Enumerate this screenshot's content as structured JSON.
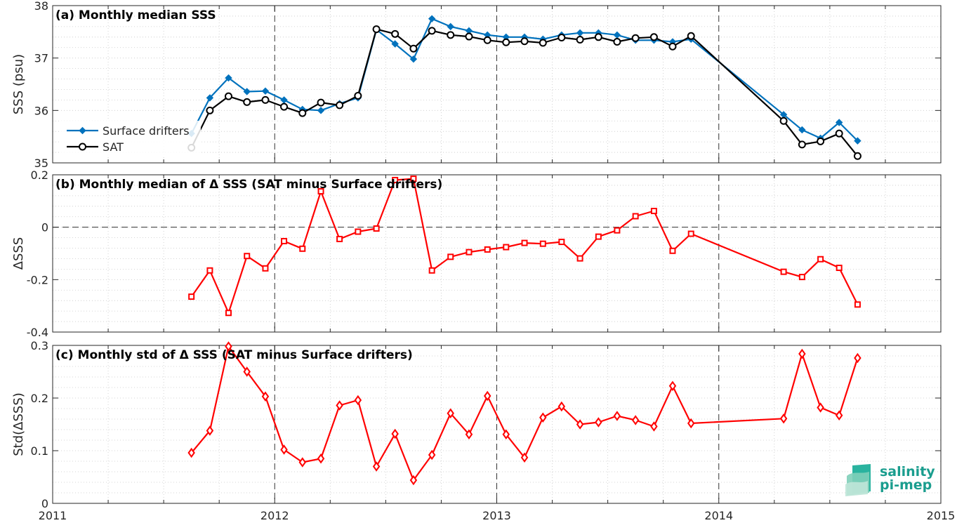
{
  "chart_data": [
    {
      "id": "a",
      "type": "line",
      "title": "(a) Monthly median SSS",
      "ylabel": "SSS (psu)",
      "xlim": [
        2011,
        2015
      ],
      "ylim": [
        35,
        38
      ],
      "yticks": [
        35,
        36,
        37,
        38
      ],
      "grid": true,
      "legend": {
        "placement": "left",
        "entries": [
          "Surface drifters",
          "SAT"
        ]
      },
      "series": [
        {
          "name": "Surface drifters",
          "color": "#0072bd",
          "marker": "diamond",
          "x": [
            2011.625,
            2011.708,
            2011.792,
            2011.875,
            2011.958,
            2012.042,
            2012.125,
            2012.208,
            2012.292,
            2012.375,
            2012.458,
            2012.542,
            2012.625,
            2012.708,
            2012.792,
            2012.875,
            2012.958,
            2013.042,
            2013.125,
            2013.208,
            2013.292,
            2013.375,
            2013.458,
            2013.542,
            2013.625,
            2013.708,
            2013.792,
            2013.875,
            2014.292,
            2014.375,
            2014.458,
            2014.542,
            2014.625
          ],
          "y": [
            35.56,
            36.24,
            36.62,
            36.36,
            36.37,
            36.2,
            36.02,
            36.0,
            36.13,
            36.24,
            37.54,
            37.27,
            36.98,
            37.75,
            37.6,
            37.52,
            37.44,
            37.4,
            37.4,
            37.36,
            37.44,
            37.48,
            37.48,
            37.44,
            37.34,
            37.34,
            37.31,
            37.36,
            35.92,
            35.63,
            35.47,
            35.77,
            35.42
          ]
        },
        {
          "name": "SAT",
          "color": "#000000",
          "marker": "circle",
          "x": [
            2011.625,
            2011.708,
            2011.792,
            2011.875,
            2011.958,
            2012.042,
            2012.125,
            2012.208,
            2012.292,
            2012.375,
            2012.458,
            2012.542,
            2012.625,
            2012.708,
            2012.792,
            2012.875,
            2012.958,
            2013.042,
            2013.125,
            2013.208,
            2013.292,
            2013.375,
            2013.458,
            2013.542,
            2013.625,
            2013.708,
            2013.792,
            2013.875,
            2014.292,
            2014.375,
            2014.458,
            2014.542,
            2014.625
          ],
          "y": [
            35.29,
            36.0,
            36.27,
            36.16,
            36.2,
            36.07,
            35.95,
            36.15,
            36.1,
            36.28,
            37.55,
            37.46,
            37.18,
            37.52,
            37.44,
            37.41,
            37.34,
            37.3,
            37.32,
            37.29,
            37.39,
            37.35,
            37.4,
            37.31,
            37.38,
            37.4,
            37.22,
            37.42,
            35.8,
            35.35,
            35.41,
            35.56,
            35.13
          ]
        }
      ]
    },
    {
      "id": "b",
      "type": "line",
      "title": "(b) Monthly median of Δ SSS (SAT minus Surface drifters)",
      "ylabel": "ΔSSS",
      "xlim": [
        2011,
        2015
      ],
      "ylim": [
        -0.4,
        0.2
      ],
      "yticks": [
        -0.4,
        -0.2,
        0,
        0.2
      ],
      "ytick_labels": [
        "-0.4",
        "-0.2",
        "0",
        "0.2"
      ],
      "reference_line": 0,
      "grid": true,
      "series": [
        {
          "name": "",
          "color": "#ff0000",
          "marker": "square",
          "x": [
            2011.625,
            2011.708,
            2011.792,
            2011.875,
            2011.958,
            2012.042,
            2012.125,
            2012.208,
            2012.292,
            2012.375,
            2012.458,
            2012.542,
            2012.625,
            2012.708,
            2012.792,
            2012.875,
            2012.958,
            2013.042,
            2013.125,
            2013.208,
            2013.292,
            2013.375,
            2013.458,
            2013.542,
            2013.625,
            2013.708,
            2013.792,
            2013.875,
            2014.292,
            2014.375,
            2014.458,
            2014.542,
            2014.625
          ],
          "y": [
            -0.265,
            -0.165,
            -0.327,
            -0.11,
            -0.157,
            -0.053,
            -0.082,
            0.137,
            -0.045,
            -0.017,
            -0.005,
            0.18,
            0.185,
            -0.165,
            -0.113,
            -0.095,
            -0.085,
            -0.076,
            -0.06,
            -0.063,
            -0.056,
            -0.119,
            -0.036,
            -0.012,
            0.042,
            0.062,
            -0.09,
            -0.025,
            -0.17,
            -0.19,
            -0.122,
            -0.155,
            -0.295
          ]
        }
      ]
    },
    {
      "id": "c",
      "type": "line",
      "title": "(c) Monthly std of Δ SSS (SAT minus Surface drifters)",
      "ylabel": "Std(ΔSSS)",
      "xlim": [
        2011,
        2015
      ],
      "ylim": [
        0,
        0.3
      ],
      "yticks": [
        0,
        0.1,
        0.2,
        0.3
      ],
      "ytick_labels": [
        "0",
        "0.1",
        "0.2",
        "0.3"
      ],
      "xticks": [
        2011,
        2012,
        2013,
        2014,
        2015
      ],
      "xtick_labels": [
        "2011",
        "2012",
        "2013",
        "2014",
        "2015"
      ],
      "grid": true,
      "series": [
        {
          "name": "",
          "color": "#ff0000",
          "marker": "diamond-open",
          "x": [
            2011.625,
            2011.708,
            2011.792,
            2011.875,
            2011.958,
            2012.042,
            2012.125,
            2012.208,
            2012.292,
            2012.375,
            2012.458,
            2012.542,
            2012.625,
            2012.708,
            2012.792,
            2012.875,
            2012.958,
            2013.042,
            2013.125,
            2013.208,
            2013.292,
            2013.375,
            2013.458,
            2013.542,
            2013.625,
            2013.708,
            2013.792,
            2013.875,
            2014.292,
            2014.375,
            2014.458,
            2014.542,
            2014.625
          ],
          "y": [
            0.096,
            0.138,
            0.298,
            0.25,
            0.203,
            0.102,
            0.078,
            0.085,
            0.186,
            0.196,
            0.07,
            0.132,
            0.044,
            0.092,
            0.171,
            0.131,
            0.204,
            0.131,
            0.087,
            0.163,
            0.184,
            0.15,
            0.154,
            0.166,
            0.158,
            0.146,
            0.223,
            0.152,
            0.161,
            0.284,
            0.182,
            0.167,
            0.276
          ]
        }
      ]
    }
  ],
  "logo": {
    "line1": "salinity",
    "line2": "pi-mep",
    "color": "#1a9d8e"
  }
}
